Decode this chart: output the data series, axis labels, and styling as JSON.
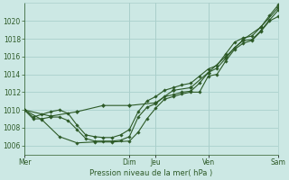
{
  "background_color": "#cce8e4",
  "grid_color": "#aacfcb",
  "line_color": "#2d5a27",
  "xlabel": "Pression niveau de la mer( hPa )",
  "ylim": [
    1005.0,
    1022.0
  ],
  "yticks": [
    1006,
    1008,
    1010,
    1012,
    1014,
    1016,
    1018,
    1020
  ],
  "xlim": [
    0,
    29
  ],
  "day_labels": [
    "Mer",
    "Dim",
    "Jeu",
    "Ven",
    "Sam"
  ],
  "day_x": [
    0,
    12,
    15,
    21,
    29
  ],
  "series1": [
    1010.0,
    1009.0,
    1009.0,
    1009.2,
    1009.2,
    1008.8,
    1007.8,
    1006.8,
    1006.5,
    1006.5,
    1006.5,
    1006.6,
    1007.0,
    1009.2,
    1010.3,
    1010.7,
    1011.5,
    1011.7,
    1012.0,
    1012.1,
    1013.0,
    1014.2,
    1014.7,
    1015.8,
    1017.0,
    1017.8,
    1017.9,
    1018.9,
    1020.1,
    1021.2
  ],
  "series2": [
    1010.0,
    1009.2,
    1009.5,
    1009.8,
    1010.0,
    1009.6,
    1008.3,
    1007.2,
    1007.0,
    1006.9,
    1006.9,
    1007.2,
    1007.8,
    1009.8,
    1011.0,
    1011.5,
    1012.2,
    1012.5,
    1012.8,
    1013.0,
    1013.8,
    1014.6,
    1015.0,
    1016.3,
    1017.6,
    1018.1,
    1018.3,
    1019.3,
    1020.6,
    1021.8
  ],
  "series3_x": [
    0,
    3,
    6,
    9,
    12,
    15,
    17,
    19,
    21,
    23,
    25,
    27,
    29
  ],
  "series3_y": [
    1010.0,
    1009.3,
    1009.8,
    1010.5,
    1010.5,
    1010.8,
    1012.2,
    1012.5,
    1014.2,
    1016.0,
    1017.9,
    1019.3,
    1021.5
  ],
  "series4_x": [
    0,
    2,
    4,
    6,
    8,
    10,
    12,
    13,
    14,
    15,
    16,
    17,
    18,
    19,
    20,
    21,
    22,
    23,
    24,
    25,
    26,
    27,
    28,
    29
  ],
  "series4_y": [
    1010.0,
    1008.9,
    1007.0,
    1006.3,
    1006.4,
    1006.4,
    1006.5,
    1007.5,
    1009.0,
    1010.2,
    1011.2,
    1011.5,
    1011.8,
    1012.0,
    1012.0,
    1013.8,
    1014.0,
    1015.5,
    1016.8,
    1017.5,
    1017.8,
    1018.8,
    1020.0,
    1020.5
  ]
}
